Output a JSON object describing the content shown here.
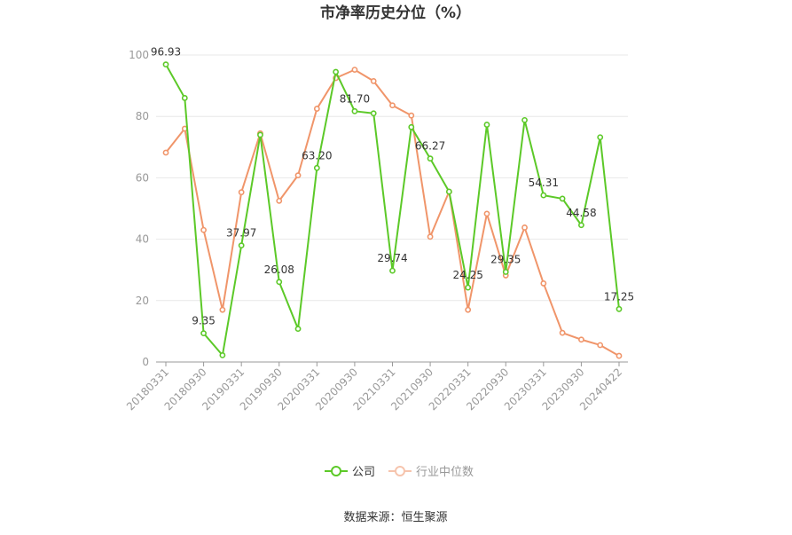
{
  "chart_data": {
    "type": "line",
    "title": "市净率历史分位（%）",
    "source_text": "数据来源：恒生聚源",
    "ylim": [
      0,
      100
    ],
    "yticks": [
      0,
      20,
      40,
      60,
      80,
      100
    ],
    "grid": true,
    "legend_position": "bottom",
    "x": [
      "20180331",
      "20180630",
      "20180930",
      "20181231",
      "20190331",
      "20190630",
      "20190930",
      "20191231",
      "20200331",
      "20200630",
      "20200930",
      "20201231",
      "20210331",
      "20210630",
      "20210930",
      "20211231",
      "20220331",
      "20220630",
      "20220930",
      "20221231",
      "20230331",
      "20230630",
      "20230930",
      "20231231",
      "20240422"
    ],
    "xtick_labels": [
      "20180331",
      "20180930",
      "20190331",
      "20190930",
      "20200331",
      "20200930",
      "20210331",
      "20210930",
      "20220331",
      "20220930",
      "20230331",
      "20230930",
      "20240422"
    ],
    "series": [
      {
        "name": "公司",
        "color": "#5cc928",
        "values": [
          96.93,
          86,
          9.35,
          2.2,
          37.97,
          74,
          26.08,
          10.8,
          63.2,
          94.5,
          81.7,
          81,
          29.74,
          76.5,
          66.27,
          55.5,
          24.25,
          77.3,
          29.35,
          78.8,
          54.31,
          53.2,
          44.58,
          73.2,
          17.25
        ],
        "labels": [
          "96.93",
          "",
          "9.35",
          "",
          "37.97",
          "",
          "26.08",
          "",
          "63.20",
          "",
          "81.70",
          "",
          "29.74",
          "",
          "66.27",
          "",
          "24.25",
          "",
          "29.35",
          "",
          "54.31",
          "",
          "44.58",
          "",
          "17.25"
        ]
      },
      {
        "name": "行业中位数",
        "color": "#f0956a",
        "values": [
          68.2,
          76,
          43,
          17,
          55.3,
          74.5,
          52.5,
          60.8,
          82.5,
          92.5,
          95.2,
          91.5,
          83.6,
          80.3,
          40.8,
          55.5,
          17,
          48.3,
          28.2,
          43.8,
          25.6,
          9.5,
          7.3,
          5.5,
          2
        ]
      }
    ]
  }
}
